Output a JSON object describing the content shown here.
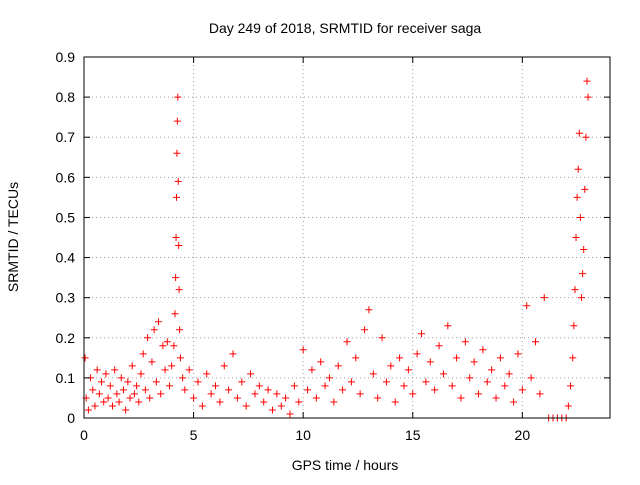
{
  "chart_data": {
    "type": "scatter",
    "title": "Day 249 of 2018, SRMTID for receiver saga",
    "xlabel": "GPS time / hours",
    "ylabel": "SRMTID / TECUs",
    "xlim": [
      0,
      24
    ],
    "ylim": [
      0,
      0.9
    ],
    "xticks": [
      0,
      5,
      10,
      15,
      20
    ],
    "yticks": [
      0,
      0.1,
      0.2,
      0.3,
      0.4,
      0.5,
      0.6,
      0.7,
      0.8,
      0.9
    ],
    "grid": true,
    "legend": "none",
    "marker": "+",
    "series": [
      {
        "name": "SRMTID",
        "color": "#ff0000",
        "points": [
          [
            0.05,
            0.15
          ],
          [
            0.1,
            0.05
          ],
          [
            0.2,
            0.02
          ],
          [
            0.3,
            0.1
          ],
          [
            0.4,
            0.07
          ],
          [
            0.5,
            0.03
          ],
          [
            0.6,
            0.12
          ],
          [
            0.7,
            0.06
          ],
          [
            0.8,
            0.09
          ],
          [
            0.9,
            0.04
          ],
          [
            1.0,
            0.11
          ],
          [
            1.1,
            0.05
          ],
          [
            1.2,
            0.08
          ],
          [
            1.3,
            0.03
          ],
          [
            1.4,
            0.12
          ],
          [
            1.5,
            0.06
          ],
          [
            1.6,
            0.04
          ],
          [
            1.7,
            0.1
          ],
          [
            1.8,
            0.07
          ],
          [
            1.9,
            0.02
          ],
          [
            2.0,
            0.09
          ],
          [
            2.1,
            0.05
          ],
          [
            2.2,
            0.13
          ],
          [
            2.3,
            0.06
          ],
          [
            2.4,
            0.08
          ],
          [
            2.5,
            0.04
          ],
          [
            2.6,
            0.11
          ],
          [
            2.7,
            0.16
          ],
          [
            2.8,
            0.07
          ],
          [
            2.9,
            0.2
          ],
          [
            3.0,
            0.05
          ],
          [
            3.1,
            0.14
          ],
          [
            3.2,
            0.22
          ],
          [
            3.3,
            0.09
          ],
          [
            3.4,
            0.24
          ],
          [
            3.5,
            0.06
          ],
          [
            3.6,
            0.18
          ],
          [
            3.7,
            0.12
          ],
          [
            3.8,
            0.19
          ],
          [
            3.9,
            0.08
          ],
          [
            4.0,
            0.13
          ],
          [
            4.1,
            0.18
          ],
          [
            4.15,
            0.26
          ],
          [
            4.18,
            0.35
          ],
          [
            4.2,
            0.45
          ],
          [
            4.22,
            0.55
          ],
          [
            4.24,
            0.66
          ],
          [
            4.26,
            0.74
          ],
          [
            4.28,
            0.8
          ],
          [
            4.3,
            0.59
          ],
          [
            4.32,
            0.43
          ],
          [
            4.34,
            0.32
          ],
          [
            4.36,
            0.22
          ],
          [
            4.4,
            0.15
          ],
          [
            4.5,
            0.1
          ],
          [
            4.6,
            0.07
          ],
          [
            4.8,
            0.12
          ],
          [
            5.0,
            0.05
          ],
          [
            5.2,
            0.09
          ],
          [
            5.4,
            0.03
          ],
          [
            5.6,
            0.11
          ],
          [
            5.8,
            0.06
          ],
          [
            6.0,
            0.08
          ],
          [
            6.2,
            0.04
          ],
          [
            6.4,
            0.13
          ],
          [
            6.6,
            0.07
          ],
          [
            6.8,
            0.16
          ],
          [
            7.0,
            0.05
          ],
          [
            7.2,
            0.09
          ],
          [
            7.4,
            0.03
          ],
          [
            7.6,
            0.11
          ],
          [
            7.8,
            0.06
          ],
          [
            8.0,
            0.08
          ],
          [
            8.2,
            0.04
          ],
          [
            8.4,
            0.07
          ],
          [
            8.6,
            0.02
          ],
          [
            8.8,
            0.06
          ],
          [
            9.0,
            0.03
          ],
          [
            9.2,
            0.05
          ],
          [
            9.4,
            0.01
          ],
          [
            9.6,
            0.08
          ],
          [
            9.8,
            0.04
          ],
          [
            10.0,
            0.17
          ],
          [
            10.2,
            0.07
          ],
          [
            10.4,
            0.12
          ],
          [
            10.6,
            0.05
          ],
          [
            10.8,
            0.14
          ],
          [
            11.0,
            0.08
          ],
          [
            11.2,
            0.1
          ],
          [
            11.4,
            0.04
          ],
          [
            11.6,
            0.13
          ],
          [
            11.8,
            0.07
          ],
          [
            12.0,
            0.19
          ],
          [
            12.2,
            0.09
          ],
          [
            12.4,
            0.15
          ],
          [
            12.6,
            0.06
          ],
          [
            12.8,
            0.22
          ],
          [
            13.0,
            0.27
          ],
          [
            13.2,
            0.11
          ],
          [
            13.4,
            0.05
          ],
          [
            13.6,
            0.2
          ],
          [
            13.8,
            0.09
          ],
          [
            14.0,
            0.13
          ],
          [
            14.2,
            0.04
          ],
          [
            14.4,
            0.15
          ],
          [
            14.6,
            0.08
          ],
          [
            14.8,
            0.12
          ],
          [
            15.0,
            0.06
          ],
          [
            15.2,
            0.16
          ],
          [
            15.4,
            0.21
          ],
          [
            15.6,
            0.09
          ],
          [
            15.8,
            0.14
          ],
          [
            16.0,
            0.07
          ],
          [
            16.2,
            0.18
          ],
          [
            16.4,
            0.11
          ],
          [
            16.6,
            0.23
          ],
          [
            16.8,
            0.08
          ],
          [
            17.0,
            0.15
          ],
          [
            17.2,
            0.05
          ],
          [
            17.4,
            0.19
          ],
          [
            17.6,
            0.1
          ],
          [
            17.8,
            0.14
          ],
          [
            18.0,
            0.06
          ],
          [
            18.2,
            0.17
          ],
          [
            18.4,
            0.09
          ],
          [
            18.6,
            0.12
          ],
          [
            18.8,
            0.05
          ],
          [
            19.0,
            0.15
          ],
          [
            19.2,
            0.08
          ],
          [
            19.4,
            0.11
          ],
          [
            19.6,
            0.04
          ],
          [
            19.8,
            0.16
          ],
          [
            20.0,
            0.07
          ],
          [
            20.2,
            0.28
          ],
          [
            20.4,
            0.1
          ],
          [
            20.6,
            0.19
          ],
          [
            20.8,
            0.06
          ],
          [
            21.0,
            0.3
          ],
          [
            21.2,
            0.0
          ],
          [
            21.4,
            0.0
          ],
          [
            21.6,
            0.0
          ],
          [
            21.8,
            0.0
          ],
          [
            22.0,
            0.0
          ],
          [
            22.1,
            0.03
          ],
          [
            22.2,
            0.08
          ],
          [
            22.3,
            0.15
          ],
          [
            22.35,
            0.23
          ],
          [
            22.4,
            0.32
          ],
          [
            22.45,
            0.45
          ],
          [
            22.5,
            0.55
          ],
          [
            22.55,
            0.62
          ],
          [
            22.6,
            0.71
          ],
          [
            22.65,
            0.5
          ],
          [
            22.7,
            0.3
          ],
          [
            22.75,
            0.36
          ],
          [
            22.8,
            0.42
          ],
          [
            22.85,
            0.57
          ],
          [
            22.9,
            0.7
          ],
          [
            22.95,
            0.84
          ],
          [
            23.0,
            0.8
          ]
        ]
      }
    ]
  }
}
